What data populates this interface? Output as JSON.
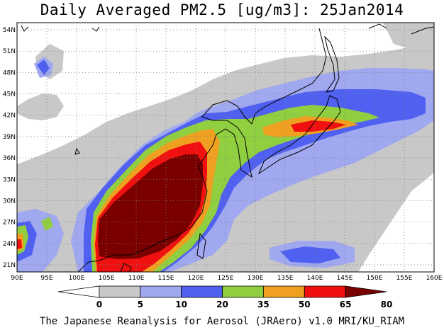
{
  "title": "Daily Averaged PM2.5 [ug/m3]: 25Jan2014",
  "credit": "The Japanese Reanalysis for Aerosol (JRAero) v1.0 MRI/KU_RIAM",
  "map": {
    "lon_range": [
      90,
      160
    ],
    "lat_range": [
      20,
      55
    ],
    "lon_ticks": [
      "90E",
      "95E",
      "100E",
      "105E",
      "110E",
      "115E",
      "120E",
      "125E",
      "130E",
      "135E",
      "140E",
      "145E",
      "150E",
      "155E",
      "160E"
    ],
    "lat_ticks": [
      "21N",
      "24N",
      "27N",
      "30N",
      "33N",
      "36N",
      "39N",
      "42N",
      "45N",
      "48N",
      "51N",
      "54N"
    ]
  },
  "colorbar": {
    "levels": [
      "0",
      "5",
      "10",
      "20",
      "35",
      "50",
      "65",
      "80"
    ],
    "colors": [
      "#ffffff",
      "#c8c8c8",
      "#a0a8f0",
      "#5060f0",
      "#90d040",
      "#f0a020",
      "#f01010",
      "#7a0000"
    ],
    "units": "ug/m3"
  }
}
